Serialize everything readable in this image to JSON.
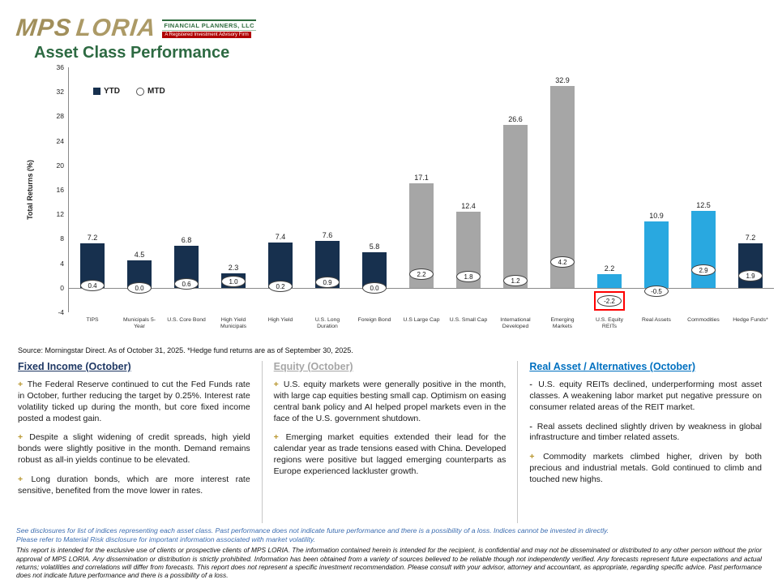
{
  "theme": {
    "navy": "#17304E",
    "gray": "#A6A6A6",
    "light_blue": "#29A8E0",
    "title_green": "#2D6A42",
    "plus_color": "#B8962E",
    "minus_color": "#404040",
    "highlight_red": "#FF0000"
  },
  "logo": {
    "mps": "MPS",
    "loria": "LORIA",
    "subtitle": "FINANCIAL PLANNERS, LLC",
    "tagline": "A Registered Investment Advisory Firm"
  },
  "page_title": "Asset Class Performance",
  "chart_data": {
    "type": "bar",
    "title": "Asset Class Performance",
    "xlabel": "",
    "ylabel": "Total Returns (%)",
    "ylim": [
      -4,
      36
    ],
    "ytick_step": 4,
    "grid": false,
    "legend_position": "top-left",
    "categories": [
      "TIPS",
      "Municipals 5-\nYear",
      "U.S. Core Bond",
      "High Yield\nMunicipals",
      "High Yield",
      "U.S. Long\nDuration",
      "Foreign Bond",
      "U.S Large Cap",
      "U.S. Small Cap",
      "International\nDeveloped",
      "Emerging\nMarkets",
      "U.S. Equity\nREITs",
      "Real Assets",
      "Commodities",
      "Hedge Funds*"
    ],
    "series": [
      {
        "name": "YTD",
        "values": [
          7.2,
          4.5,
          6.8,
          2.3,
          7.4,
          7.6,
          5.8,
          17.1,
          12.4,
          26.6,
          32.9,
          2.2,
          10.9,
          12.5,
          7.2
        ]
      },
      {
        "name": "MTD",
        "values": [
          0.4,
          0.0,
          0.6,
          1.0,
          0.2,
          0.9,
          0.0,
          2.2,
          1.8,
          1.2,
          4.2,
          -2.2,
          -0.5,
          2.9,
          1.9
        ]
      }
    ],
    "bar_colors": [
      "#17304E",
      "#17304E",
      "#17304E",
      "#17304E",
      "#17304E",
      "#17304E",
      "#17304E",
      "#A6A6A6",
      "#A6A6A6",
      "#A6A6A6",
      "#A6A6A6",
      "#29A8E0",
      "#29A8E0",
      "#29A8E0",
      "#17304E"
    ],
    "mtd_highlight_index": 11
  },
  "source_note": "Source: Morningstar Direct. As of October 31, 2025. *Hedge fund returns are as of September 30, 2025.",
  "columns": [
    {
      "heading": "Fixed Income (October)",
      "color": "#1F3864",
      "items": [
        {
          "sign": "+",
          "text": "The Federal Reserve continued to cut the Fed Funds rate in October, further reducing the target by 0.25%. Interest rate volatility ticked up during the month, but core fixed income posted a modest gain."
        },
        {
          "sign": "+",
          "text": "Despite a slight widening of credit spreads, high yield bonds were slightly positive in the month. Demand remains robust as all-in yields continue to be elevated."
        },
        {
          "sign": "+",
          "text": "Long duration bonds, which are more interest rate sensitive, benefited from the move lower in rates."
        }
      ]
    },
    {
      "heading": "Equity (October)",
      "color": "#A6A6A6",
      "items": [
        {
          "sign": "+",
          "text": "U.S. equity markets were generally positive in the month, with large cap equities besting small cap. Optimism on easing central bank policy and AI helped propel markets even in the face of the U.S. government shutdown."
        },
        {
          "sign": "+",
          "text": "Emerging market equities extended their lead for the calendar year as trade tensions eased with China. Developed regions were positive but lagged emerging counterparts as Europe experienced lackluster growth."
        }
      ]
    },
    {
      "heading": "Real Asset / Alternatives (October)",
      "color": "#0070C0",
      "items": [
        {
          "sign": "-",
          "text": "U.S. equity REITs declined, underperforming most asset classes. A weakening labor market put negative pressure on consumer related areas of the REIT market."
        },
        {
          "sign": "-",
          "text": "Real assets declined slightly driven by weakness in global infrastructure and timber related assets."
        },
        {
          "sign": "+",
          "text": "Commodity markets climbed higher, driven by both precious and industrial metals. Gold continued to climb and touched new highs."
        }
      ]
    }
  ],
  "footnotes": {
    "blue": [
      "See disclosures for list of indices representing each asset class. Past performance does not indicate future performance and there is a possibility of a loss. Indices cannot be invested in directly.",
      "Please refer to Material Risk disclosure for important information associated with market volatility."
    ],
    "legal": "This report is intended for the exclusive use of clients or prospective clients of MPS LORIA. The information contained herein is intended for the recipient, is confidential and may not be disseminated or distributed to any other person without the prior approval of MPS LORIA. Any dissemination or distribution is strictly prohibited. Information has been obtained from a variety of sources believed to be reliable though not independently verified. Any forecasts represent future expectations and actual returns; volatilities and correlations will differ from forecasts. This report does not represent a specific investment recommendation. Please consult with your advisor, attorney and accountant, as appropriate, regarding specific advice. Past performance does not indicate future performance and there is a possibility of a loss."
  }
}
